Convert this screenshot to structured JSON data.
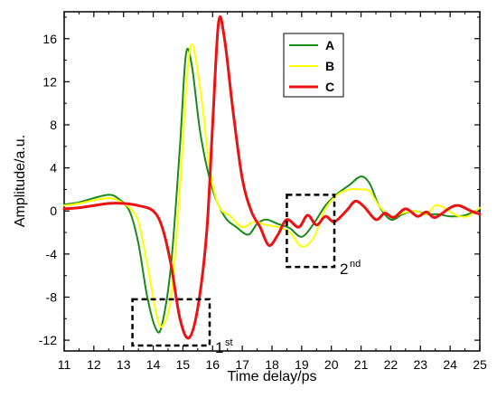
{
  "chart_data": {
    "type": "line",
    "xlabel": "Time delay/ps",
    "ylabel": "Amplitude/a.u.",
    "xlim": [
      11,
      25
    ],
    "ylim": [
      -13,
      18.5
    ],
    "xticks": [
      11,
      12,
      13,
      14,
      15,
      16,
      17,
      18,
      19,
      20,
      21,
      22,
      23,
      24,
      25
    ],
    "yticks": [
      -12,
      -8,
      -4,
      0,
      4,
      8,
      12,
      16
    ],
    "grid": false,
    "legend": "top-center",
    "series": [
      {
        "name": "A",
        "color": "#1a8a1a",
        "points": [
          [
            11,
            0.6
          ],
          [
            11.5,
            0.8
          ],
          [
            12,
            1.2
          ],
          [
            12.5,
            1.5
          ],
          [
            12.8,
            1.2
          ],
          [
            13.2,
            0
          ],
          [
            13.5,
            -3
          ],
          [
            13.8,
            -8
          ],
          [
            14.1,
            -11
          ],
          [
            14.3,
            -10.5
          ],
          [
            14.6,
            -5
          ],
          [
            14.9,
            6
          ],
          [
            15.1,
            14.5
          ],
          [
            15.3,
            13.5
          ],
          [
            15.6,
            7
          ],
          [
            16,
            2
          ],
          [
            16.4,
            -0.5
          ],
          [
            16.8,
            -1.5
          ],
          [
            17.2,
            -2.2
          ],
          [
            17.5,
            -1.2
          ],
          [
            17.8,
            -0.8
          ],
          [
            18.2,
            -1.2
          ],
          [
            18.6,
            -1.6
          ],
          [
            19.0,
            -2.4
          ],
          [
            19.4,
            -1.2
          ],
          [
            19.8,
            0.5
          ],
          [
            20.2,
            1.6
          ],
          [
            20.6,
            2.4
          ],
          [
            21.0,
            3.2
          ],
          [
            21.3,
            2.5
          ],
          [
            21.6,
            0.5
          ],
          [
            22.0,
            -0.8
          ],
          [
            22.4,
            -0.3
          ],
          [
            22.8,
            0
          ],
          [
            23.2,
            -0.3
          ],
          [
            23.6,
            -0.3
          ],
          [
            24.0,
            -0.5
          ],
          [
            24.5,
            -0.4
          ],
          [
            25,
            0.2
          ]
        ]
      },
      {
        "name": "B",
        "color": "#ffff00",
        "points": [
          [
            11,
            0.5
          ],
          [
            11.5,
            0.7
          ],
          [
            12,
            1.0
          ],
          [
            12.5,
            1.2
          ],
          [
            12.8,
            1.0
          ],
          [
            13.2,
            0.3
          ],
          [
            13.5,
            -1
          ],
          [
            13.8,
            -5
          ],
          [
            14.1,
            -9.5
          ],
          [
            14.3,
            -10.7
          ],
          [
            14.6,
            -8
          ],
          [
            14.9,
            2
          ],
          [
            15.1,
            11
          ],
          [
            15.3,
            15.5
          ],
          [
            15.6,
            11
          ],
          [
            15.9,
            4
          ],
          [
            16.2,
            0.5
          ],
          [
            16.6,
            -0.5
          ],
          [
            17.0,
            -1.5
          ],
          [
            17.4,
            -1.0
          ],
          [
            17.8,
            -1.3
          ],
          [
            18.2,
            -1.5
          ],
          [
            18.6,
            -2.0
          ],
          [
            19.0,
            -3.3
          ],
          [
            19.4,
            -2.5
          ],
          [
            19.8,
            0.2
          ],
          [
            20.2,
            1.5
          ],
          [
            20.6,
            2.0
          ],
          [
            21.0,
            2.0
          ],
          [
            21.3,
            1.8
          ],
          [
            21.6,
            0.5
          ],
          [
            22.0,
            -0.5
          ],
          [
            22.4,
            -0.2
          ],
          [
            22.8,
            0
          ],
          [
            23.2,
            -0.3
          ],
          [
            23.5,
            0.5
          ],
          [
            23.8,
            0.3
          ],
          [
            24.2,
            -0.4
          ],
          [
            24.6,
            -0.5
          ],
          [
            25,
            0.3
          ]
        ]
      },
      {
        "name": "C",
        "color": "#ee1111",
        "points": [
          [
            11,
            0.2
          ],
          [
            11.5,
            0.3
          ],
          [
            12,
            0.5
          ],
          [
            12.5,
            0.7
          ],
          [
            13,
            0.7
          ],
          [
            13.5,
            0.5
          ],
          [
            14,
            0
          ],
          [
            14.3,
            -1.5
          ],
          [
            14.6,
            -5
          ],
          [
            14.9,
            -10
          ],
          [
            15.2,
            -11.8
          ],
          [
            15.5,
            -9
          ],
          [
            15.8,
            -2
          ],
          [
            16.0,
            8
          ],
          [
            16.2,
            17.5
          ],
          [
            16.4,
            16
          ],
          [
            16.7,
            9
          ],
          [
            17.0,
            3
          ],
          [
            17.3,
            0
          ],
          [
            17.6,
            -1.5
          ],
          [
            17.9,
            -3.2
          ],
          [
            18.2,
            -2.2
          ],
          [
            18.5,
            -0.8
          ],
          [
            18.9,
            -1.5
          ],
          [
            19.2,
            -0.4
          ],
          [
            19.5,
            -1.3
          ],
          [
            19.8,
            -0.5
          ],
          [
            20.1,
            -1.0
          ],
          [
            20.5,
            0
          ],
          [
            20.8,
            0.9
          ],
          [
            21.1,
            0.4
          ],
          [
            21.5,
            -0.8
          ],
          [
            21.8,
            -0.2
          ],
          [
            22.1,
            -0.6
          ],
          [
            22.5,
            0.2
          ],
          [
            22.9,
            -0.5
          ],
          [
            23.2,
            -0.1
          ],
          [
            23.5,
            -0.6
          ],
          [
            24.0,
            0.3
          ],
          [
            24.3,
            0.5
          ],
          [
            24.7,
            0
          ],
          [
            25,
            -0.3
          ]
        ]
      }
    ],
    "annotations": [
      {
        "label": "1",
        "sup": "st",
        "box": {
          "x": [
            13.3,
            15.9
          ],
          "y": [
            -12.5,
            -8.2
          ]
        }
      },
      {
        "label": "2",
        "sup": "nd",
        "box": {
          "x": [
            18.5,
            20.1
          ],
          "y": [
            -5.2,
            1.5
          ]
        }
      }
    ]
  }
}
